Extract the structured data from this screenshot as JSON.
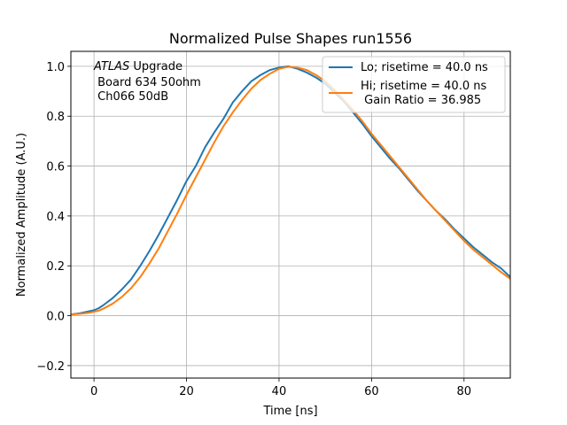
{
  "chart_data": {
    "type": "line",
    "title": "Normalized Pulse Shapes run1556",
    "xlabel": "Time [ns]",
    "ylabel": "Normalized Amplitude (A.U.)",
    "xlim": [
      -5,
      90
    ],
    "ylim": [
      -0.25,
      1.06
    ],
    "xticks": [
      0,
      20,
      40,
      60,
      80
    ],
    "xtick_labels": [
      "0",
      "20",
      "40",
      "60",
      "80"
    ],
    "yticks": [
      -0.2,
      0.0,
      0.2,
      0.4,
      0.6,
      0.8,
      1.0
    ],
    "ytick_labels": [
      "−0.2",
      "0.0",
      "0.2",
      "0.4",
      "0.6",
      "0.8",
      "1.0"
    ],
    "grid": true,
    "legend_position": "top-right",
    "annotation": {
      "line1_italic": "ATLAS",
      "line1_rest": " Upgrade",
      "line2": " Board 634 50ohm",
      "line3": " Ch066 50dB"
    },
    "series": [
      {
        "name": "Lo; risetime = 40.0 ns",
        "color": "#1f77b4",
        "x": [
          -5,
          -3,
          -1,
          0,
          1,
          2,
          4,
          6,
          8,
          10,
          12,
          14,
          16,
          18,
          20,
          22,
          24,
          26,
          28,
          30,
          32,
          34,
          36,
          38,
          40,
          42,
          44,
          46,
          48,
          50,
          52,
          54,
          56,
          58,
          60,
          62,
          64,
          66,
          68,
          70,
          72,
          74,
          76,
          78,
          80,
          82,
          84,
          86,
          88,
          90
        ],
        "y": [
          0.005,
          0.01,
          0.018,
          0.022,
          0.03,
          0.042,
          0.07,
          0.105,
          0.145,
          0.2,
          0.26,
          0.325,
          0.395,
          0.465,
          0.54,
          0.6,
          0.675,
          0.735,
          0.79,
          0.855,
          0.9,
          0.94,
          0.965,
          0.985,
          0.995,
          1.0,
          0.99,
          0.975,
          0.955,
          0.93,
          0.895,
          0.86,
          0.815,
          0.77,
          0.72,
          0.675,
          0.63,
          0.59,
          0.545,
          0.5,
          0.46,
          0.42,
          0.385,
          0.345,
          0.31,
          0.275,
          0.245,
          0.215,
          0.19,
          0.155
        ]
      },
      {
        "name": "Hi; risetime = 40.0 ns",
        "color": "#ff7f0e",
        "x": [
          -5,
          -3,
          -1,
          0,
          1,
          2,
          4,
          6,
          8,
          10,
          12,
          14,
          16,
          18,
          20,
          22,
          24,
          26,
          28,
          30,
          32,
          34,
          36,
          38,
          40,
          42,
          44,
          46,
          48,
          50,
          52,
          54,
          56,
          58,
          60,
          62,
          64,
          66,
          68,
          70,
          72,
          74,
          76,
          78,
          80,
          82,
          84,
          86,
          88,
          90
        ],
        "y": [
          0.005,
          0.008,
          0.012,
          0.016,
          0.02,
          0.028,
          0.048,
          0.075,
          0.11,
          0.155,
          0.21,
          0.27,
          0.34,
          0.41,
          0.485,
          0.555,
          0.625,
          0.695,
          0.76,
          0.815,
          0.865,
          0.91,
          0.945,
          0.97,
          0.99,
          0.998,
          0.995,
          0.985,
          0.965,
          0.94,
          0.905,
          0.865,
          0.825,
          0.78,
          0.73,
          0.685,
          0.64,
          0.595,
          0.55,
          0.505,
          0.46,
          0.42,
          0.38,
          0.34,
          0.3,
          0.265,
          0.235,
          0.205,
          0.175,
          0.148
        ]
      }
    ],
    "legend_extra_text": " Gain Ratio = 36.985"
  }
}
